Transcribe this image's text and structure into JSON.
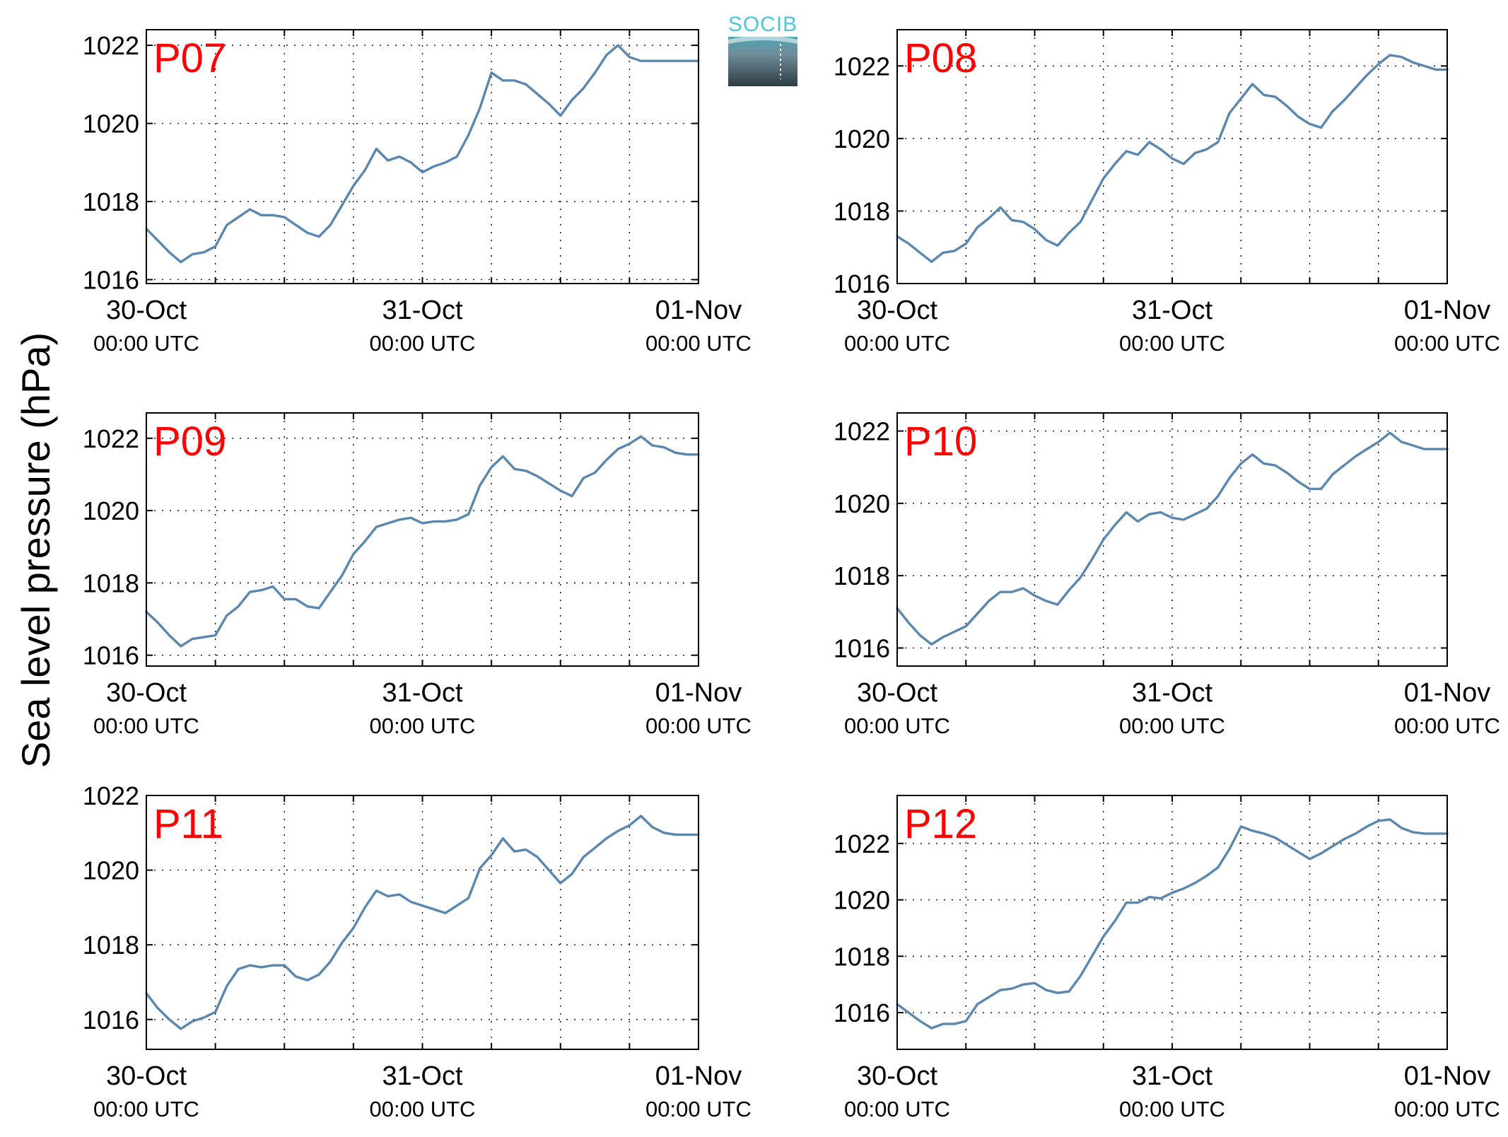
{
  "figure": {
    "ylabel": "Sea level pressure (hPa)",
    "logo_text": "SOCIB",
    "colors": {
      "line": "#5b87ae",
      "panel_label": "#ff0000",
      "logo_text": "#4fc3d6",
      "logo_top": "#4fa6b5",
      "logo_bottom": "#2e3d46"
    }
  },
  "chart_data": [
    {
      "type": "line",
      "panel_label": "P07",
      "grid": true,
      "x_ticks": [
        {
          "main": "30-Oct",
          "sub": "00:00 UTC",
          "hour": 0
        },
        {
          "main": "31-Oct",
          "sub": "00:00 UTC",
          "hour": 24
        },
        {
          "main": "01-Nov",
          "sub": "00:00 UTC",
          "hour": 48
        }
      ],
      "xlim_hours": [
        0,
        48
      ],
      "ylim": [
        1015.9,
        1022.4
      ],
      "yticks": [
        1016,
        1018,
        1020,
        1022
      ],
      "series": [
        {
          "hours": [
            0,
            1,
            2,
            3,
            4,
            5,
            6,
            7,
            8,
            9,
            10,
            11,
            12,
            13,
            14,
            15,
            16,
            17,
            18,
            19,
            20,
            21,
            22,
            23,
            24,
            25,
            26,
            27,
            28,
            29,
            30,
            31,
            32,
            33,
            34,
            35,
            36,
            37,
            38,
            39,
            40,
            41,
            42,
            43,
            44,
            45,
            46,
            47,
            48
          ],
          "values": [
            1017.3,
            1017.0,
            1016.7,
            1016.45,
            1016.65,
            1016.7,
            1016.85,
            1017.4,
            1017.6,
            1017.8,
            1017.65,
            1017.65,
            1017.6,
            1017.4,
            1017.2,
            1017.1,
            1017.4,
            1017.9,
            1018.4,
            1018.8,
            1019.35,
            1019.05,
            1019.15,
            1019.0,
            1018.75,
            1018.9,
            1019.0,
            1019.15,
            1019.7,
            1020.4,
            1021.3,
            1021.1,
            1021.1,
            1021.0,
            1020.75,
            1020.5,
            1020.2,
            1020.6,
            1020.9,
            1021.3,
            1021.75,
            1022.0,
            1021.7,
            1021.6,
            1021.6,
            1021.6,
            1021.6,
            1021.6,
            1021.6
          ]
        }
      ]
    },
    {
      "type": "line",
      "panel_label": "P08",
      "grid": true,
      "x_ticks": [
        {
          "main": "30-Oct",
          "sub": "00:00 UTC",
          "hour": 0
        },
        {
          "main": "31-Oct",
          "sub": "00:00 UTC",
          "hour": 24
        },
        {
          "main": "01-Nov",
          "sub": "00:00 UTC",
          "hour": 48
        }
      ],
      "xlim_hours": [
        0,
        48
      ],
      "ylim": [
        1016,
        1023
      ],
      "yticks": [
        1016,
        1018,
        1020,
        1022
      ],
      "series": [
        {
          "hours": [
            0,
            1,
            2,
            3,
            4,
            5,
            6,
            7,
            8,
            9,
            10,
            11,
            12,
            13,
            14,
            15,
            16,
            17,
            18,
            19,
            20,
            21,
            22,
            23,
            24,
            25,
            26,
            27,
            28,
            29,
            30,
            31,
            32,
            33,
            34,
            35,
            36,
            37,
            38,
            39,
            40,
            41,
            42,
            43,
            44,
            45,
            46,
            47,
            48
          ],
          "values": [
            1017.3,
            1017.1,
            1016.85,
            1016.6,
            1016.85,
            1016.9,
            1017.1,
            1017.55,
            1017.8,
            1018.1,
            1017.75,
            1017.7,
            1017.5,
            1017.2,
            1017.05,
            1017.4,
            1017.7,
            1018.3,
            1018.9,
            1019.3,
            1019.65,
            1019.55,
            1019.9,
            1019.7,
            1019.45,
            1019.3,
            1019.6,
            1019.7,
            1019.9,
            1020.7,
            1021.1,
            1021.5,
            1021.2,
            1021.15,
            1020.9,
            1020.6,
            1020.4,
            1020.3,
            1020.75,
            1021.05,
            1021.4,
            1021.75,
            1022.05,
            1022.3,
            1022.25,
            1022.1,
            1022.0,
            1021.9,
            1021.9
          ]
        }
      ]
    },
    {
      "type": "line",
      "panel_label": "P09",
      "grid": true,
      "x_ticks": [
        {
          "main": "30-Oct",
          "sub": "00:00 UTC",
          "hour": 0
        },
        {
          "main": "31-Oct",
          "sub": "00:00 UTC",
          "hour": 24
        },
        {
          "main": "01-Nov",
          "sub": "00:00 UTC",
          "hour": 48
        }
      ],
      "xlim_hours": [
        0,
        48
      ],
      "ylim": [
        1015.7,
        1022.7
      ],
      "yticks": [
        1016,
        1018,
        1020,
        1022
      ],
      "series": [
        {
          "hours": [
            0,
            1,
            2,
            3,
            4,
            5,
            6,
            7,
            8,
            9,
            10,
            11,
            12,
            13,
            14,
            15,
            16,
            17,
            18,
            19,
            20,
            21,
            22,
            23,
            24,
            25,
            26,
            27,
            28,
            29,
            30,
            31,
            32,
            33,
            34,
            35,
            36,
            37,
            38,
            39,
            40,
            41,
            42,
            43,
            44,
            45,
            46,
            47,
            48
          ],
          "values": [
            1017.2,
            1016.9,
            1016.55,
            1016.25,
            1016.45,
            1016.5,
            1016.55,
            1017.1,
            1017.35,
            1017.75,
            1017.8,
            1017.9,
            1017.55,
            1017.55,
            1017.35,
            1017.3,
            1017.75,
            1018.2,
            1018.8,
            1019.15,
            1019.55,
            1019.65,
            1019.75,
            1019.8,
            1019.65,
            1019.7,
            1019.7,
            1019.75,
            1019.9,
            1020.7,
            1021.2,
            1021.5,
            1021.15,
            1021.1,
            1020.95,
            1020.75,
            1020.55,
            1020.4,
            1020.9,
            1021.05,
            1021.4,
            1021.7,
            1021.85,
            1022.05,
            1021.8,
            1021.75,
            1021.6,
            1021.55,
            1021.55
          ]
        }
      ]
    },
    {
      "type": "line",
      "panel_label": "P10",
      "grid": true,
      "x_ticks": [
        {
          "main": "30-Oct",
          "sub": "00:00 UTC",
          "hour": 0
        },
        {
          "main": "31-Oct",
          "sub": "00:00 UTC",
          "hour": 24
        },
        {
          "main": "01-Nov",
          "sub": "00:00 UTC",
          "hour": 48
        }
      ],
      "xlim_hours": [
        0,
        48
      ],
      "ylim": [
        1015.5,
        1022.5
      ],
      "yticks": [
        1016,
        1018,
        1020,
        1022
      ],
      "series": [
        {
          "hours": [
            0,
            1,
            2,
            3,
            4,
            5,
            6,
            7,
            8,
            9,
            10,
            11,
            12,
            13,
            14,
            15,
            16,
            17,
            18,
            19,
            20,
            21,
            22,
            23,
            24,
            25,
            26,
            27,
            28,
            29,
            30,
            31,
            32,
            33,
            34,
            35,
            36,
            37,
            38,
            39,
            40,
            41,
            42,
            43,
            44,
            45,
            46,
            47,
            48
          ],
          "values": [
            1017.1,
            1016.7,
            1016.35,
            1016.1,
            1016.3,
            1016.45,
            1016.6,
            1016.95,
            1017.3,
            1017.55,
            1017.55,
            1017.65,
            1017.45,
            1017.3,
            1017.2,
            1017.6,
            1017.95,
            1018.45,
            1019.0,
            1019.4,
            1019.75,
            1019.5,
            1019.7,
            1019.75,
            1019.6,
            1019.55,
            1019.7,
            1019.85,
            1020.2,
            1020.7,
            1021.1,
            1021.35,
            1021.1,
            1021.05,
            1020.85,
            1020.6,
            1020.4,
            1020.4,
            1020.8,
            1021.05,
            1021.3,
            1021.5,
            1021.7,
            1021.95,
            1021.7,
            1021.6,
            1021.5,
            1021.5,
            1021.5
          ]
        }
      ]
    },
    {
      "type": "line",
      "panel_label": "P11",
      "grid": true,
      "x_ticks": [
        {
          "main": "30-Oct",
          "sub": "00:00 UTC",
          "hour": 0
        },
        {
          "main": "31-Oct",
          "sub": "00:00 UTC",
          "hour": 24
        },
        {
          "main": "01-Nov",
          "sub": "00:00 UTC",
          "hour": 48
        }
      ],
      "xlim_hours": [
        0,
        48
      ],
      "ylim": [
        1015.2,
        1022.0
      ],
      "yticks": [
        1016,
        1018,
        1020,
        1022
      ],
      "series": [
        {
          "hours": [
            0,
            1,
            2,
            3,
            4,
            5,
            6,
            7,
            8,
            9,
            10,
            11,
            12,
            13,
            14,
            15,
            16,
            17,
            18,
            19,
            20,
            21,
            22,
            23,
            24,
            25,
            26,
            27,
            28,
            29,
            30,
            31,
            32,
            33,
            34,
            35,
            36,
            37,
            38,
            39,
            40,
            41,
            42,
            43,
            44,
            45,
            46,
            47,
            48
          ],
          "values": [
            1016.7,
            1016.3,
            1016.0,
            1015.75,
            1015.95,
            1016.05,
            1016.2,
            1016.9,
            1017.35,
            1017.45,
            1017.4,
            1017.45,
            1017.45,
            1017.15,
            1017.05,
            1017.2,
            1017.55,
            1018.05,
            1018.45,
            1019.0,
            1019.45,
            1019.3,
            1019.35,
            1019.15,
            1019.05,
            1018.95,
            1018.85,
            1019.05,
            1019.25,
            1020.05,
            1020.4,
            1020.85,
            1020.5,
            1020.55,
            1020.35,
            1020.0,
            1019.65,
            1019.9,
            1020.35,
            1020.6,
            1020.85,
            1021.05,
            1021.2,
            1021.45,
            1021.15,
            1021.0,
            1020.95,
            1020.95,
            1020.95
          ]
        }
      ]
    },
    {
      "type": "line",
      "panel_label": "P12",
      "grid": true,
      "x_ticks": [
        {
          "main": "30-Oct",
          "sub": "00:00 UTC",
          "hour": 0
        },
        {
          "main": "31-Oct",
          "sub": "00:00 UTC",
          "hour": 24
        },
        {
          "main": "01-Nov",
          "sub": "00:00 UTC",
          "hour": 48
        }
      ],
      "xlim_hours": [
        0,
        48
      ],
      "ylim": [
        1014.7,
        1023.7
      ],
      "yticks": [
        1016,
        1018,
        1020,
        1022
      ],
      "series": [
        {
          "hours": [
            0,
            1,
            2,
            3,
            4,
            5,
            6,
            7,
            8,
            9,
            10,
            11,
            12,
            13,
            14,
            15,
            16,
            17,
            18,
            19,
            20,
            21,
            22,
            23,
            24,
            25,
            26,
            27,
            28,
            29,
            30,
            31,
            32,
            33,
            34,
            35,
            36,
            37,
            38,
            39,
            40,
            41,
            42,
            43,
            44,
            45,
            46,
            47,
            48
          ],
          "values": [
            1016.3,
            1016.0,
            1015.7,
            1015.45,
            1015.6,
            1015.6,
            1015.7,
            1016.3,
            1016.55,
            1016.8,
            1016.85,
            1017.0,
            1017.05,
            1016.8,
            1016.7,
            1016.75,
            1017.3,
            1018.0,
            1018.7,
            1019.25,
            1019.9,
            1019.9,
            1020.1,
            1020.05,
            1020.25,
            1020.4,
            1020.6,
            1020.85,
            1021.15,
            1021.8,
            1022.6,
            1022.45,
            1022.35,
            1022.2,
            1021.95,
            1021.7,
            1021.45,
            1021.65,
            1021.9,
            1022.15,
            1022.35,
            1022.6,
            1022.8,
            1022.85,
            1022.55,
            1022.4,
            1022.35,
            1022.35,
            1022.35
          ]
        }
      ]
    }
  ]
}
